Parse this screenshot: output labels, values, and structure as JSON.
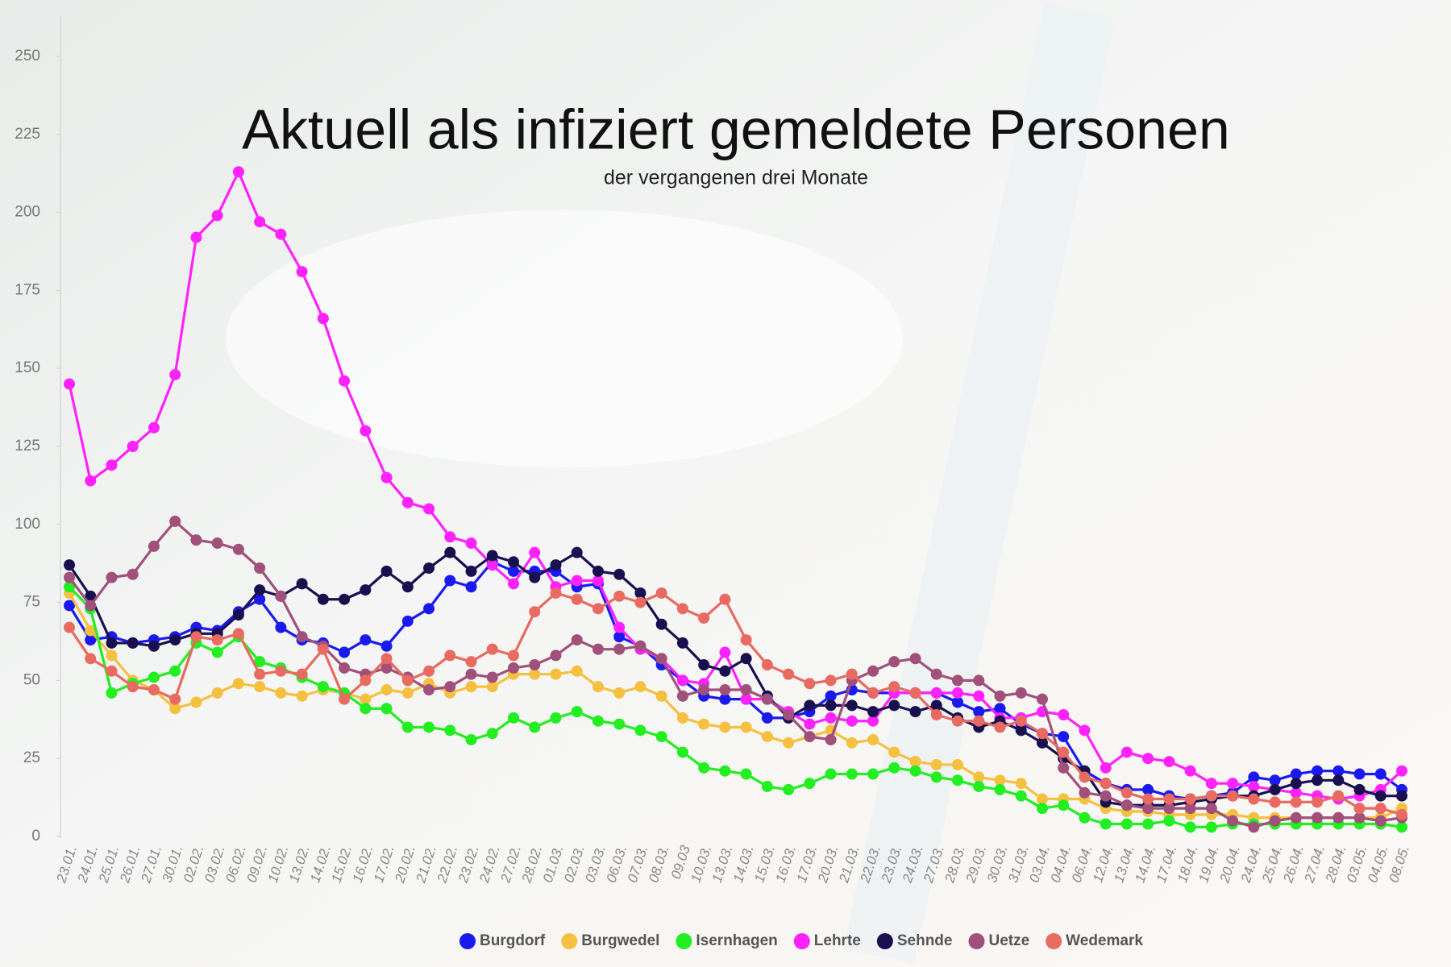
{
  "chart_data": {
    "type": "line",
    "title": "Aktuell als infiziert gemeldete Personen",
    "subtitle": "der vergangenen drei Monate",
    "categories": [
      "23.01.",
      "24.01.",
      "25.01.",
      "26.01.",
      "27.01.",
      "30.01.",
      "02.02.",
      "03.02.",
      "06.02.",
      "09.02.",
      "10.02.",
      "13.02.",
      "14.02.",
      "15.02.",
      "16.02.",
      "17.02.",
      "20.02.",
      "21.02.",
      "22.02.",
      "23.02.",
      "24.02.",
      "27.02.",
      "28.02.",
      "01.03.",
      "02.03.",
      "03.03.",
      "06.03.",
      "07.03.",
      "08.03.",
      "09.03",
      "10.03.",
      "13.03.",
      "14.03.",
      "15.03.",
      "16.03.",
      "17.03.",
      "20.03.",
      "21.03.",
      "22.03.",
      "23.03.",
      "24.03.",
      "27.03.",
      "28.03.",
      "29.03.",
      "30.03.",
      "31.03.",
      "03.04.",
      "04.04.",
      "06.04.",
      "12.04.",
      "13.04.",
      "14.04.",
      "17.04.",
      "18.04.",
      "19.04.",
      "20.04.",
      "24.04.",
      "25.04.",
      "26.04.",
      "27.04.",
      "28.04.",
      "03.05.",
      "04.05.",
      "08.05."
    ],
    "series": [
      {
        "name": "Burgdorf",
        "color": "#1a1aee",
        "values": [
          74,
          63,
          64,
          62,
          63,
          64,
          67,
          66,
          72,
          76,
          67,
          63,
          62,
          59,
          63,
          61,
          69,
          73,
          82,
          80,
          88,
          85,
          85,
          85,
          80,
          81,
          64,
          61,
          55,
          50,
          45,
          44,
          44,
          38,
          38,
          40,
          45,
          47,
          46,
          46,
          46,
          46,
          43,
          40,
          41,
          36,
          33,
          32,
          21,
          17,
          15,
          15,
          13,
          12,
          13,
          14,
          19,
          18,
          20,
          21,
          21,
          20,
          20,
          15
        ]
      },
      {
        "name": "Burgwedel",
        "color": "#f5c040",
        "values": [
          78,
          66,
          58,
          50,
          47,
          41,
          43,
          46,
          49,
          48,
          46,
          45,
          47,
          46,
          44,
          47,
          46,
          49,
          46,
          48,
          48,
          52,
          52,
          52,
          53,
          48,
          46,
          48,
          45,
          38,
          36,
          35,
          35,
          32,
          30,
          32,
          34,
          30,
          31,
          27,
          24,
          23,
          23,
          19,
          18,
          17,
          12,
          12,
          12,
          9,
          8,
          8,
          7,
          7,
          7,
          7,
          6,
          6,
          6,
          6,
          6,
          6,
          6,
          9
        ]
      },
      {
        "name": "Isernhagen",
        "color": "#22ee22",
        "values": [
          80,
          73,
          46,
          49,
          51,
          53,
          62,
          59,
          64,
          56,
          54,
          51,
          48,
          46,
          41,
          41,
          35,
          35,
          34,
          31,
          33,
          38,
          35,
          38,
          40,
          37,
          36,
          34,
          32,
          27,
          22,
          21,
          20,
          16,
          15,
          17,
          20,
          20,
          20,
          22,
          21,
          19,
          18,
          16,
          15,
          13,
          9,
          10,
          6,
          4,
          4,
          4,
          5,
          3,
          3,
          4,
          4,
          4,
          4,
          4,
          4,
          4,
          4,
          3
        ]
      },
      {
        "name": "Lehrte",
        "color": "#ff22ff",
        "values": [
          145,
          114,
          119,
          125,
          131,
          148,
          192,
          199,
          213,
          197,
          193,
          181,
          166,
          146,
          130,
          115,
          107,
          105,
          96,
          94,
          87,
          81,
          91,
          80,
          82,
          82,
          67,
          60,
          57,
          50,
          49,
          59,
          44,
          44,
          40,
          36,
          38,
          37,
          37,
          46,
          46,
          46,
          46,
          45,
          38,
          38,
          40,
          39,
          34,
          22,
          27,
          25,
          24,
          21,
          17,
          17,
          16,
          15,
          14,
          13,
          12,
          13,
          15,
          21
        ]
      },
      {
        "name": "Sehnde",
        "color": "#1a1050",
        "values": [
          87,
          77,
          62,
          62,
          61,
          63,
          65,
          65,
          71,
          79,
          77,
          81,
          76,
          76,
          79,
          85,
          80,
          86,
          91,
          85,
          90,
          88,
          83,
          87,
          91,
          85,
          84,
          78,
          68,
          62,
          55,
          53,
          57,
          45,
          38,
          42,
          42,
          42,
          40,
          42,
          40,
          42,
          38,
          35,
          37,
          34,
          30,
          25,
          21,
          11,
          10,
          10,
          10,
          11,
          12,
          13,
          13,
          15,
          17,
          18,
          18,
          15,
          13,
          13
        ]
      },
      {
        "name": "Uetze",
        "color": "#a0507a",
        "values": [
          83,
          74,
          83,
          84,
          93,
          101,
          95,
          94,
          92,
          86,
          77,
          64,
          61,
          54,
          52,
          54,
          51,
          47,
          48,
          52,
          51,
          54,
          55,
          58,
          63,
          60,
          60,
          61,
          57,
          45,
          47,
          47,
          47,
          44,
          39,
          32,
          31,
          50,
          53,
          56,
          57,
          52,
          50,
          50,
          45,
          46,
          44,
          22,
          14,
          13,
          10,
          9,
          9,
          9,
          9,
          5,
          3,
          5,
          6,
          6,
          6,
          6,
          5,
          6
        ]
      },
      {
        "name": "Wedemark",
        "color": "#e86a60",
        "values": [
          67,
          57,
          53,
          48,
          47,
          44,
          64,
          63,
          65,
          52,
          53,
          52,
          60,
          44,
          50,
          57,
          50,
          53,
          58,
          56,
          60,
          58,
          72,
          78,
          76,
          73,
          77,
          75,
          78,
          73,
          70,
          76,
          63,
          55,
          52,
          49,
          50,
          52,
          46,
          48,
          46,
          39,
          37,
          37,
          35,
          37,
          33,
          27,
          19,
          17,
          14,
          12,
          12,
          12,
          13,
          13,
          12,
          11,
          11,
          11,
          13,
          9,
          9,
          7
        ]
      }
    ],
    "ylim": [
      0,
      250
    ],
    "yticks": [
      0,
      25,
      50,
      75,
      100,
      125,
      150,
      175,
      200,
      225,
      250
    ],
    "grid": false,
    "legend": "bottom"
  }
}
